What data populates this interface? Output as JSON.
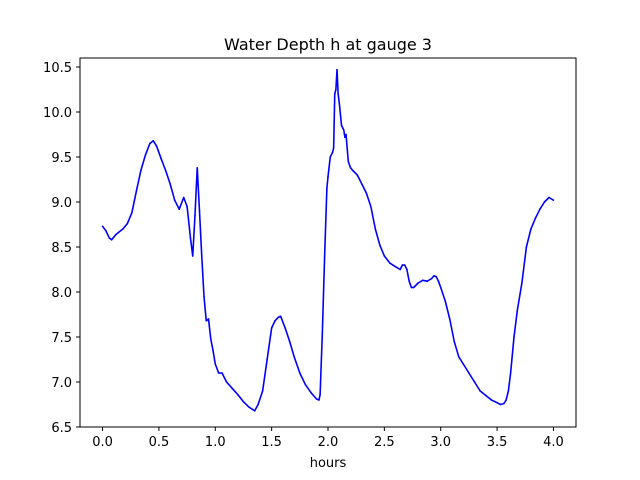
{
  "chart_data": {
    "type": "line",
    "title": "Water Depth h at gauge 3",
    "xlabel": "hours",
    "ylabel": "",
    "xlim": [
      -0.2,
      4.2
    ],
    "ylim": [
      6.5,
      10.6
    ],
    "xticks": [
      0.0,
      0.5,
      1.0,
      1.5,
      2.0,
      2.5,
      3.0,
      3.5,
      4.0
    ],
    "xtick_labels": [
      "0.0",
      "0.5",
      "1.0",
      "1.5",
      "2.0",
      "2.5",
      "3.0",
      "3.5",
      "4.0"
    ],
    "yticks": [
      6.5,
      7.0,
      7.5,
      8.0,
      8.5,
      9.0,
      9.5,
      10.0,
      10.5
    ],
    "ytick_labels": [
      "6.5",
      "7.0",
      "7.5",
      "8.0",
      "8.5",
      "9.0",
      "9.5",
      "10.0",
      "10.5"
    ],
    "grid": false,
    "legend": "none",
    "series": [
      {
        "color": "#0000ff",
        "x": [
          0.0,
          0.03,
          0.06,
          0.08,
          0.12,
          0.18,
          0.22,
          0.26,
          0.3,
          0.34,
          0.38,
          0.42,
          0.45,
          0.48,
          0.52,
          0.56,
          0.6,
          0.64,
          0.68,
          0.72,
          0.75,
          0.78,
          0.8,
          0.82,
          0.84,
          0.86,
          0.88,
          0.9,
          0.92,
          0.94,
          0.96,
          0.98,
          1.0,
          1.03,
          1.06,
          1.1,
          1.15,
          1.2,
          1.25,
          1.3,
          1.35,
          1.38,
          1.42,
          1.46,
          1.5,
          1.53,
          1.56,
          1.58,
          1.62,
          1.66,
          1.7,
          1.75,
          1.8,
          1.85,
          1.9,
          1.92,
          1.93,
          1.95,
          1.97,
          1.99,
          2.0,
          2.02,
          2.04,
          2.05,
          2.06,
          2.07,
          2.08,
          2.09,
          2.1,
          2.12,
          2.14,
          2.15,
          2.16,
          2.17,
          2.18,
          2.2,
          2.22,
          2.26,
          2.3,
          2.34,
          2.38,
          2.42,
          2.46,
          2.5,
          2.55,
          2.6,
          2.64,
          2.66,
          2.68,
          2.7,
          2.72,
          2.74,
          2.76,
          2.8,
          2.84,
          2.88,
          2.92,
          2.94,
          2.96,
          2.98,
          3.0,
          3.04,
          3.08,
          3.12,
          3.16,
          3.2,
          3.25,
          3.3,
          3.35,
          3.4,
          3.45,
          3.5,
          3.53,
          3.56,
          3.58,
          3.6,
          3.62,
          3.65,
          3.68,
          3.72,
          3.76,
          3.8,
          3.84,
          3.88,
          3.92,
          3.96,
          4.0
        ],
        "y": [
          8.73,
          8.68,
          8.6,
          8.58,
          8.64,
          8.7,
          8.76,
          8.88,
          9.12,
          9.35,
          9.52,
          9.65,
          9.68,
          9.62,
          9.48,
          9.35,
          9.2,
          9.02,
          8.92,
          9.05,
          8.95,
          8.6,
          8.4,
          8.85,
          9.38,
          8.9,
          8.4,
          7.95,
          7.68,
          7.7,
          7.48,
          7.35,
          7.2,
          7.1,
          7.1,
          7.0,
          6.93,
          6.86,
          6.78,
          6.72,
          6.68,
          6.75,
          6.9,
          7.25,
          7.6,
          7.68,
          7.72,
          7.73,
          7.6,
          7.45,
          7.28,
          7.1,
          6.97,
          6.88,
          6.81,
          6.8,
          6.86,
          7.55,
          8.4,
          9.15,
          9.28,
          9.5,
          9.55,
          9.6,
          10.2,
          10.25,
          10.47,
          10.2,
          10.1,
          9.85,
          9.8,
          9.72,
          9.75,
          9.6,
          9.45,
          9.38,
          9.35,
          9.3,
          9.2,
          9.1,
          8.95,
          8.7,
          8.52,
          8.4,
          8.32,
          8.28,
          8.25,
          8.3,
          8.3,
          8.25,
          8.12,
          8.05,
          8.05,
          8.1,
          8.13,
          8.12,
          8.15,
          8.18,
          8.17,
          8.12,
          8.05,
          7.9,
          7.7,
          7.45,
          7.28,
          7.2,
          7.1,
          7.0,
          6.9,
          6.85,
          6.8,
          6.77,
          6.75,
          6.76,
          6.8,
          6.9,
          7.1,
          7.5,
          7.8,
          8.1,
          8.5,
          8.7,
          8.82,
          8.92,
          9.0,
          9.05,
          9.02
        ]
      }
    ]
  }
}
